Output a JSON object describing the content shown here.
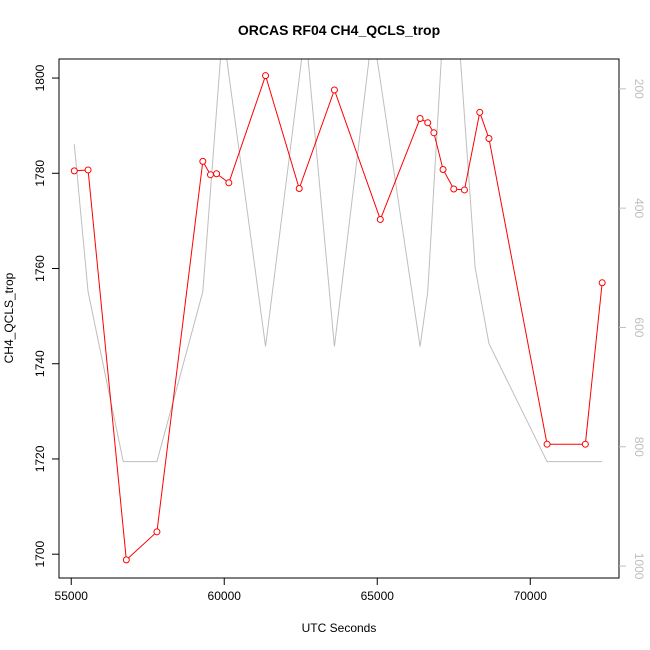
{
  "chart_data": {
    "type": "line",
    "title": "ORCAS RF04 CH4_QCLS_trop",
    "xlabel": "UTC Seconds",
    "ylabel": "CH4_QCLS_trop",
    "xlim": [
      54600,
      72900
    ],
    "ylim": [
      1695,
      1804
    ],
    "x_ticks": [
      55000,
      60000,
      65000,
      70000
    ],
    "y_ticks": [
      1700,
      1720,
      1740,
      1760,
      1780,
      1800
    ],
    "secondary_axis": {
      "ticks": [
        200,
        400,
        600,
        800,
        1000
      ],
      "lim": [
        1020,
        150
      ],
      "color": "#bebebe"
    },
    "grid": false,
    "series": [
      {
        "color": "#ff0000",
        "marker": "open-circle",
        "x": [
          55100,
          55550,
          56800,
          57800,
          59300,
          59550,
          59750,
          60150,
          61350,
          62450,
          63600,
          65100,
          66400,
          66650,
          66850,
          67150,
          67500,
          67850,
          68350,
          68650,
          70550,
          71800,
          72350
        ],
        "y": [
          1780.5,
          1780.7,
          1698.8,
          1704.7,
          1782.5,
          1779.7,
          1779.9,
          1778.0,
          1800.5,
          1776.8,
          1797.5,
          1770.3,
          1791.5,
          1790.6,
          1788.5,
          1780.8,
          1776.7,
          1776.5,
          1792.8,
          1787.3,
          1723.1,
          1723.1,
          1757.0
        ]
      },
      {
        "color": "#bebebe",
        "axis": "right",
        "x": [
          55100,
          55550,
          56700,
          57800,
          59300,
          59950,
          61350,
          62650,
          63600,
          64850,
          66400,
          66650,
          67150,
          67650,
          68200,
          68650,
          70550,
          72350
        ],
        "y": [
          293,
          540,
          825,
          825,
          540,
          100,
          632,
          100,
          632,
          100,
          632,
          540,
          100,
          100,
          500,
          627,
          825,
          825
        ]
      }
    ]
  }
}
